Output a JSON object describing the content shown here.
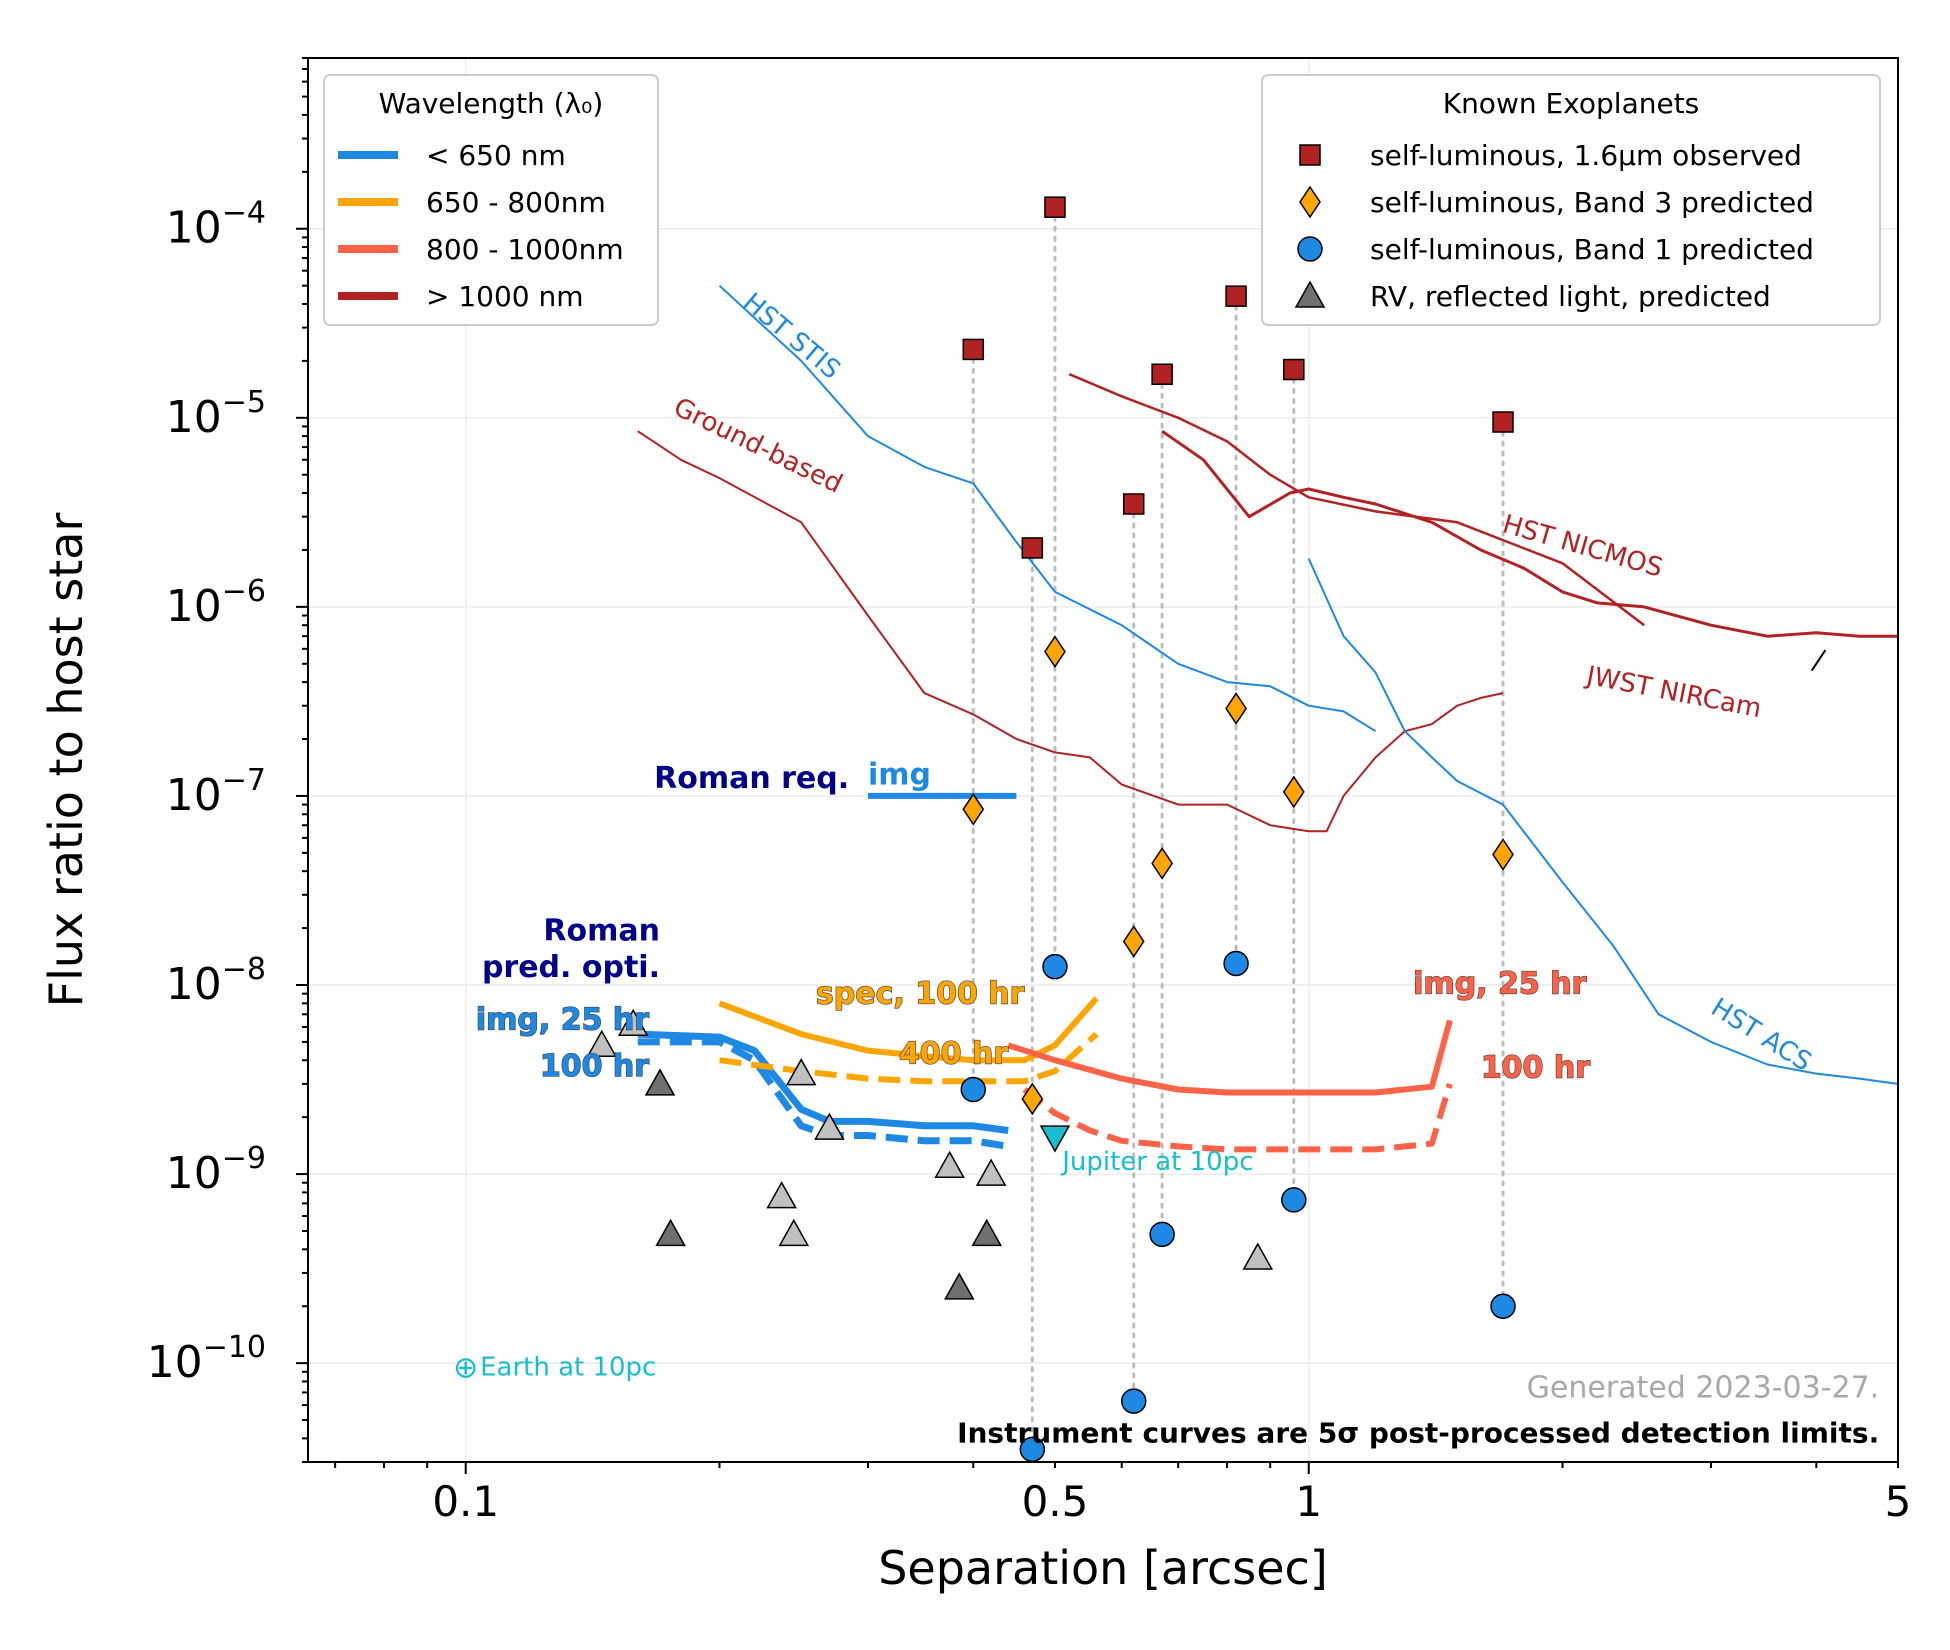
{
  "chart_data": {
    "type": "line",
    "xlabel": "Separation [arcsec]",
    "ylabel": "Flux ratio to host star",
    "x_scale": "log",
    "y_scale": "log",
    "xlim": [
      0.065,
      5
    ],
    "ylim": [
      3e-11,
      0.0008
    ],
    "x_ticks": [
      {
        "value": 0.1,
        "label": "0.1"
      },
      {
        "value": 0.5,
        "label": "0.5"
      },
      {
        "value": 1,
        "label": "1"
      },
      {
        "value": 5,
        "label": "5"
      }
    ],
    "y_ticks": [
      {
        "value": 1e-10,
        "exp": "−10"
      },
      {
        "value": 1e-09,
        "exp": "−9"
      },
      {
        "value": 1e-08,
        "exp": "−8"
      },
      {
        "value": 1e-07,
        "exp": "−7"
      },
      {
        "value": 1e-06,
        "exp": "−6"
      },
      {
        "value": 1e-05,
        "exp": "−5"
      },
      {
        "value": 0.0001,
        "exp": "−4"
      }
    ],
    "grid": true,
    "colors": {
      "blue": "#1e88e5",
      "orange": "#ffa500",
      "salmon": "#ff6347",
      "darkred": "#b22222",
      "navy": "#00008b",
      "teal": "#17becf",
      "square": "#b22222",
      "diamond": "#ffa500",
      "circle": "#1e88e5",
      "triangle_light": "#c0c0c0",
      "triangle_dark": "#707070"
    },
    "wavelength_legend": {
      "title": "Wavelength (λ₀)",
      "items": [
        {
          "label": "< 650 nm",
          "color": "#1e88e5"
        },
        {
          "label": "650 - 800nm",
          "color": "#ffa500"
        },
        {
          "label": "800 - 1000nm",
          "color": "#ff6347"
        },
        {
          "label": "> 1000 nm",
          "color": "#b22222"
        }
      ]
    },
    "planet_legend": {
      "title": "Known Exoplanets",
      "items": [
        {
          "label": "self-luminous, 1.6μm observed",
          "marker": "square"
        },
        {
          "label": "self-luminous, Band 3 predicted",
          "marker": "diamond"
        },
        {
          "label": "self-luminous, Band 1 predicted",
          "marker": "circle"
        },
        {
          "label": "RV, reflected light, predicted",
          "marker": "triangle"
        }
      ]
    },
    "series": [
      {
        "name": "HST STIS",
        "color": "#1e88e5",
        "width": 2,
        "x": [
          0.2,
          0.25,
          0.3,
          0.35,
          0.4,
          0.45,
          0.5,
          0.6,
          0.7,
          0.8,
          0.9,
          1.0,
          1.1,
          1.2
        ],
        "y": [
          5e-05,
          2e-05,
          8e-06,
          5.5e-06,
          4.5e-06,
          2.2e-06,
          1.2e-06,
          8e-07,
          5e-07,
          4e-07,
          3.8e-07,
          3e-07,
          2.8e-07,
          2.2e-07
        ]
      },
      {
        "name": "Ground-based",
        "color": "#b22222",
        "width": 2,
        "x": [
          0.16,
          0.18,
          0.2,
          0.25,
          0.3,
          0.35,
          0.4,
          0.45,
          0.5,
          0.55,
          0.6,
          0.7,
          0.8,
          0.9,
          1.0,
          1.05,
          1.1,
          1.2,
          1.3,
          1.4,
          1.5,
          1.6,
          1.7
        ],
        "y": [
          8.5e-06,
          6e-06,
          4.8e-06,
          2.8e-06,
          9e-07,
          3.5e-07,
          2.7e-07,
          2e-07,
          1.7e-07,
          1.6e-07,
          1.15e-07,
          9e-08,
          9e-08,
          7e-08,
          6.5e-08,
          6.5e-08,
          1e-07,
          1.6e-07,
          2.2e-07,
          2.4e-07,
          3e-07,
          3.3e-07,
          3.5e-07
        ]
      },
      {
        "name": "HST NICMOS",
        "color": "#b22222",
        "width": 2.5,
        "x": [
          0.52,
          0.6,
          0.7,
          0.8,
          0.9,
          1.0,
          1.2,
          1.5,
          2.0,
          2.5
        ],
        "y": [
          1.7e-05,
          1.3e-05,
          1e-05,
          7.5e-06,
          5e-06,
          3.8e-06,
          3.2e-06,
          2.8e-06,
          1.7e-06,
          8e-07
        ]
      },
      {
        "name": "JWST NIRCam",
        "color": "#b22222",
        "width": 3,
        "x": [
          0.67,
          0.75,
          0.85,
          0.95,
          1.0,
          1.1,
          1.2,
          1.4,
          1.6,
          1.8,
          2.0,
          2.2,
          2.5,
          3.0,
          3.5,
          4.0,
          4.5,
          5.0
        ],
        "y": [
          8.5e-06,
          6e-06,
          3e-06,
          4e-06,
          4.2e-06,
          3.8e-06,
          3.5e-06,
          2.8e-06,
          2e-06,
          1.6e-06,
          1.2e-06,
          1.05e-06,
          1e-06,
          8e-07,
          7e-07,
          7.3e-07,
          7e-07,
          7e-07
        ]
      },
      {
        "name": "HST ACS",
        "color": "#1e88e5",
        "width": 2,
        "x": [
          1.0,
          1.1,
          1.2,
          1.3,
          1.4,
          1.5,
          1.7,
          2.0,
          2.3,
          2.6,
          3.0,
          3.5,
          4.0,
          4.5,
          5.0
        ],
        "y": [
          1.8e-06,
          7e-07,
          4.5e-07,
          2.2e-07,
          1.6e-07,
          1.2e-07,
          9e-08,
          3.5e-08,
          1.6e-08,
          7e-09,
          5e-09,
          3.8e-09,
          3.4e-09,
          3.2e-09,
          3e-09
        ]
      },
      {
        "name": "Roman req. img",
        "color": "#1e88e5",
        "width": 6,
        "x": [
          0.3,
          0.45
        ],
        "y": [
          1e-07,
          1e-07
        ]
      },
      {
        "name": "img, 25 hr",
        "color": "#1e88e5",
        "width": 7,
        "x": [
          0.16,
          0.2,
          0.22,
          0.25,
          0.27,
          0.3,
          0.35,
          0.4,
          0.44
        ],
        "y": [
          5.5e-09,
          5.3e-09,
          4.5e-09,
          2.2e-09,
          1.9e-09,
          1.9e-09,
          1.8e-09,
          1.8e-09,
          1.7e-09
        ]
      },
      {
        "name": "100 hr",
        "color": "#1e88e5",
        "width": 7,
        "dash": "22 10",
        "x": [
          0.16,
          0.2,
          0.22,
          0.25,
          0.27,
          0.3,
          0.35,
          0.4,
          0.44
        ],
        "y": [
          5e-09,
          5e-09,
          4e-09,
          1.8e-09,
          1.6e-09,
          1.6e-09,
          1.5e-09,
          1.5e-09,
          1.4e-09
        ]
      },
      {
        "name": "spec, 100 hr",
        "color": "#ffa500",
        "width": 6,
        "x": [
          0.2,
          0.25,
          0.3,
          0.35,
          0.4,
          0.46,
          0.5,
          0.56
        ],
        "y": [
          8e-09,
          5.5e-09,
          4.5e-09,
          4.2e-09,
          4e-09,
          4e-09,
          4.8e-09,
          8.5e-09
        ]
      },
      {
        "name": "400 hr",
        "color": "#ffa500",
        "width": 6,
        "dash": "22 10",
        "x": [
          0.2,
          0.25,
          0.3,
          0.35,
          0.4,
          0.46,
          0.5,
          0.56
        ],
        "y": [
          4e-09,
          3.5e-09,
          3.2e-09,
          3.1e-09,
          3.1e-09,
          3.1e-09,
          3.5e-09,
          5.5e-09
        ]
      },
      {
        "name": "img, 25 hr",
        "color": "#ff6347",
        "width": 6,
        "x": [
          0.44,
          0.5,
          0.6,
          0.7,
          0.8,
          0.9,
          1.0,
          1.2,
          1.4,
          1.47
        ],
        "y": [
          4.8e-09,
          4e-09,
          3.2e-09,
          2.8e-09,
          2.7e-09,
          2.7e-09,
          2.7e-09,
          2.7e-09,
          2.9e-09,
          6.5e-09
        ]
      },
      {
        "name": "100 hr",
        "color": "#ff6347",
        "width": 6,
        "dash": "22 10",
        "x": [
          0.46,
          0.5,
          0.55,
          0.6,
          0.7,
          0.8,
          0.9,
          1.0,
          1.2,
          1.4,
          1.47
        ],
        "y": [
          2.8e-09,
          2.1e-09,
          1.7e-09,
          1.5e-09,
          1.4e-09,
          1.35e-09,
          1.35e-09,
          1.35e-09,
          1.35e-09,
          1.45e-09,
          3e-09
        ]
      }
    ],
    "line_labels": [
      {
        "text": "HST STIS",
        "x": 0.24,
        "y": 2.5e-05,
        "rotate": 40,
        "color": "#1e88e5",
        "size": 26
      },
      {
        "text": "Ground-based",
        "x": 0.22,
        "y": 6.5e-06,
        "rotate": 26,
        "color": "#b22222",
        "size": 26
      },
      {
        "text": "HST NICMOS",
        "x": 2.1,
        "y": 1.9e-06,
        "rotate": 16,
        "color": "#b22222",
        "size": 26
      },
      {
        "text": "JWST NIRCam",
        "x": 2.7,
        "y": 3.2e-07,
        "rotate": 11,
        "color": "#b22222",
        "size": 26
      },
      {
        "text": "HST ACS",
        "x": 3.4,
        "y": 5e-09,
        "rotate": 32,
        "color": "#1e88e5",
        "size": 26
      }
    ],
    "annotations": [
      {
        "text": "Roman req.",
        "x": 0.285,
        "y": 1.1e-07,
        "anchor": "end",
        "color": "#00008b",
        "size": 30,
        "bold": true
      },
      {
        "text": "img",
        "x": 0.3,
        "y": 1.15e-07,
        "anchor": "start",
        "color": "#1e88e5",
        "size": 30,
        "bold": true
      },
      {
        "text": "Roman",
        "x": 0.17,
        "y": 1.72e-08,
        "anchor": "end",
        "color": "#00008b",
        "size": 30,
        "bold": true
      },
      {
        "text": "pred. opti.",
        "x": 0.17,
        "y": 1.1e-08,
        "anchor": "end",
        "color": "#00008b",
        "size": 30,
        "bold": true
      },
      {
        "text": "img, 25 hr",
        "x": 0.165,
        "y": 5.8e-09,
        "anchor": "end",
        "color": "#1e88e5",
        "size": 30,
        "bold": true,
        "outline": true
      },
      {
        "text": "100 hr",
        "x": 0.165,
        "y": 3.3e-09,
        "anchor": "end",
        "color": "#1e88e5",
        "size": 30,
        "bold": true,
        "outline": true
      },
      {
        "text": "spec, 100 hr",
        "x": 0.46,
        "y": 8e-09,
        "anchor": "end",
        "color": "#ffa500",
        "size": 30,
        "bold": true,
        "outline": true
      },
      {
        "text": "400 hr",
        "x": 0.44,
        "y": 3.85e-09,
        "anchor": "end",
        "color": "#ffa500",
        "size": 30,
        "bold": true,
        "outline": true
      },
      {
        "text": "img, 25 hr",
        "x": 1.33,
        "y": 9e-09,
        "anchor": "start",
        "color": "#ff6347",
        "size": 30,
        "bold": true,
        "outline": true
      },
      {
        "text": "100 hr",
        "x": 1.6,
        "y": 3.25e-09,
        "anchor": "start",
        "color": "#ff6347",
        "size": 30,
        "bold": true,
        "outline": true
      },
      {
        "text": "Jupiter at 10pc",
        "x": 0.51,
        "y": 1.05e-09,
        "anchor": "start",
        "color": "#17becf",
        "size": 26,
        "bold": false
      },
      {
        "text": "⊕",
        "x": 0.1,
        "y": 8.4e-11,
        "anchor": "middle",
        "color": "#17becf",
        "size": 30,
        "bold": false
      },
      {
        "text": "Earth at 10pc",
        "x": 0.104,
        "y": 8.6e-11,
        "anchor": "start",
        "color": "#17becf",
        "size": 26,
        "bold": false
      },
      {
        "text": "Generated 2023-03-27.",
        "x": 4.75,
        "y": 6.6e-11,
        "anchor": "end",
        "color": "#a9a9a9",
        "size": 30,
        "bold": false
      },
      {
        "text": "Instrument curves are 5σ post-processed detection limits.",
        "x": 4.75,
        "y": 3.8e-11,
        "anchor": "end",
        "color": "#000000",
        "size": 28,
        "bold": true
      }
    ],
    "pointer_line": {
      "x": [
        3.95,
        4.1
      ],
      "y": [
        4.6e-07,
        5.9e-07
      ]
    },
    "planet_dropline_xs": [
      0.4,
      0.47,
      0.5,
      0.62,
      0.67,
      0.82,
      0.96,
      1.7
    ],
    "markers": {
      "square": [
        {
          "x": 0.4,
          "y": 2.3e-05
        },
        {
          "x": 0.47,
          "y": 2.05e-06
        },
        {
          "x": 0.5,
          "y": 0.00013
        },
        {
          "x": 0.62,
          "y": 3.5e-06
        },
        {
          "x": 0.67,
          "y": 1.7e-05
        },
        {
          "x": 0.82,
          "y": 4.4e-05
        },
        {
          "x": 0.96,
          "y": 1.8e-05
        },
        {
          "x": 1.7,
          "y": 9.5e-06
        }
      ],
      "diamond": [
        {
          "x": 0.4,
          "y": 8.5e-08
        },
        {
          "x": 0.47,
          "y": 2.5e-09
        },
        {
          "x": 0.5,
          "y": 5.8e-07
        },
        {
          "x": 0.62,
          "y": 1.7e-08
        },
        {
          "x": 0.67,
          "y": 4.4e-08
        },
        {
          "x": 0.82,
          "y": 2.9e-07
        },
        {
          "x": 0.96,
          "y": 1.05e-07
        },
        {
          "x": 1.7,
          "y": 4.9e-08
        }
      ],
      "circle": [
        {
          "x": 0.4,
          "y": 2.8e-09
        },
        {
          "x": 0.47,
          "y": 3.5e-11
        },
        {
          "x": 0.5,
          "y": 1.25e-08
        },
        {
          "x": 0.62,
          "y": 6.3e-11
        },
        {
          "x": 0.67,
          "y": 4.8e-10
        },
        {
          "x": 0.82,
          "y": 1.3e-08
        },
        {
          "x": 0.96,
          "y": 7.3e-10
        },
        {
          "x": 1.7,
          "y": 2e-10
        }
      ],
      "triangle": [
        {
          "x": 0.145,
          "y": 4.8e-09,
          "shade": "light"
        },
        {
          "x": 0.158,
          "y": 6.2e-09,
          "shade": "light"
        },
        {
          "x": 0.17,
          "y": 3e-09,
          "shade": "dark"
        },
        {
          "x": 0.175,
          "y": 4.8e-10,
          "shade": "dark"
        },
        {
          "x": 0.237,
          "y": 7.6e-10,
          "shade": "light"
        },
        {
          "x": 0.245,
          "y": 4.8e-10,
          "shade": "light"
        },
        {
          "x": 0.25,
          "y": 3.4e-09,
          "shade": "light"
        },
        {
          "x": 0.27,
          "y": 1.75e-09,
          "shade": "light"
        },
        {
          "x": 0.375,
          "y": 1.1e-09,
          "shade": "light"
        },
        {
          "x": 0.385,
          "y": 2.5e-10,
          "shade": "dark"
        },
        {
          "x": 0.415,
          "y": 4.8e-10,
          "shade": "dark"
        },
        {
          "x": 0.42,
          "y": 1e-09,
          "shade": "light"
        },
        {
          "x": 0.87,
          "y": 3.6e-10,
          "shade": "light"
        }
      ],
      "jupiter": [
        {
          "x": 0.5,
          "y": 1.55e-09
        }
      ]
    }
  }
}
